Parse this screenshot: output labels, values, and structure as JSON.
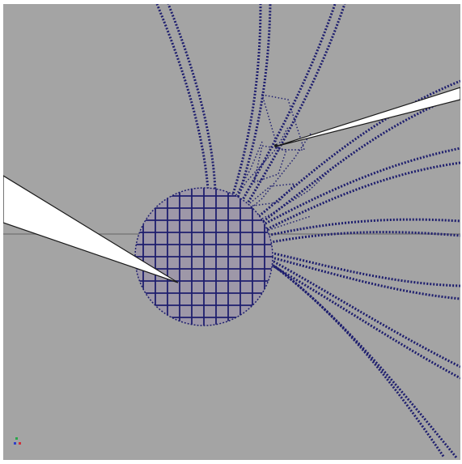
{
  "viewport": {
    "camera_label": "",
    "background": "#a4a4a4",
    "wire_color": "#1e1e6e",
    "callout_fill": "#ffffff"
  },
  "axis_indicator": {
    "x_color": "#d0303a",
    "y_color": "#2aa64a",
    "z_color": "#3040c8"
  },
  "icons": [
    "wireframe-sphere-icon",
    "spiral-tube-icon",
    "callout-icon",
    "axis-gizmo-icon"
  ]
}
